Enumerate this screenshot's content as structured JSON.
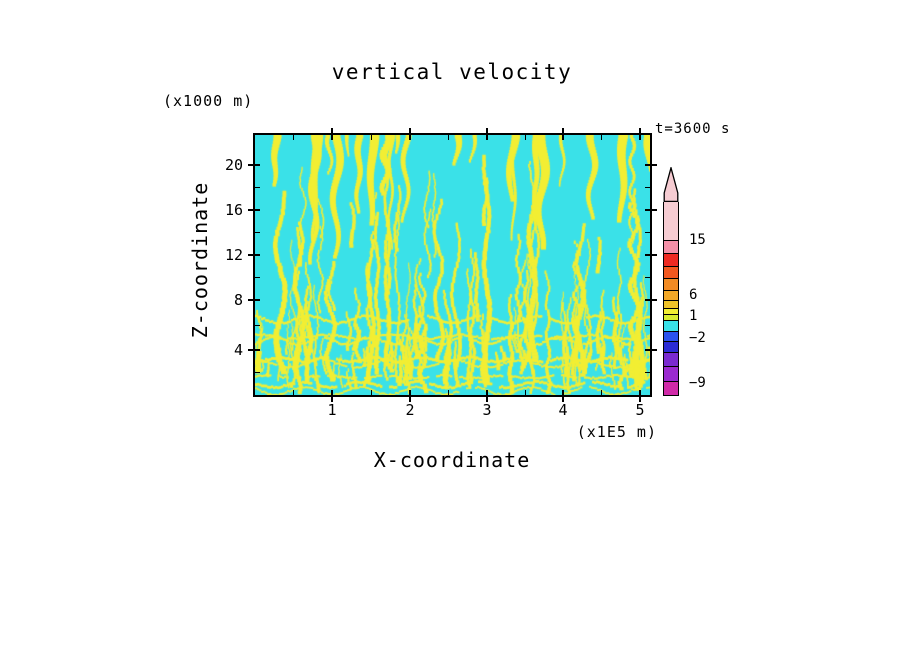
{
  "title": "vertical velocity",
  "time_label": "t=3600 s",
  "axes": {
    "x": {
      "title": "X-coordinate",
      "unit": "(x1E5 m)",
      "tick_labels": [
        "1",
        "2",
        "3",
        "4",
        "5"
      ]
    },
    "y": {
      "title": "Z-coordinate",
      "unit": "(x1000 m)",
      "tick_labels": [
        "20",
        "16",
        "12",
        "8",
        "4"
      ]
    }
  },
  "field": {
    "background_color": "#3ae1e8",
    "streak_color": "#f2ee33"
  },
  "colorbar": {
    "arrow_color": "#f6ccd2",
    "labels": [
      {
        "text": "15",
        "y": 73
      },
      {
        "text": "6",
        "y": 128
      },
      {
        "text": "1",
        "y": 149
      },
      {
        "text": "−2",
        "y": 171
      },
      {
        "text": "−9",
        "y": 216
      }
    ],
    "segments": [
      {
        "color": "#f6ccd2",
        "h": 38
      },
      {
        "color": "#f490a8",
        "h": 13
      },
      {
        "color": "#ee2a22",
        "h": 13
      },
      {
        "color": "#f2581f",
        "h": 12
      },
      {
        "color": "#f28b24",
        "h": 12
      },
      {
        "color": "#f2a828",
        "h": 10
      },
      {
        "color": "#f0c42a",
        "h": 8
      },
      {
        "color": "#f2ee33",
        "h": 6
      },
      {
        "color": "#d8ec30",
        "h": 6
      },
      {
        "color": "#3ae1e8",
        "h": 11
      },
      {
        "color": "#2a52ee",
        "h": 10
      },
      {
        "color": "#2b2bd5",
        "h": 11
      },
      {
        "color": "#7a2ad0",
        "h": 14
      },
      {
        "color": "#9b2ad0",
        "h": 15
      },
      {
        "color": "#d02aa8",
        "h": 14
      }
    ]
  },
  "chart_data": {
    "type": "heatmap",
    "title": "vertical velocity",
    "xlabel": "X-coordinate",
    "ylabel": "Z-coordinate",
    "x_unit": "(x1E5 m)",
    "y_unit": "(x1000 m)",
    "x_range": [
      0,
      5.1
    ],
    "y_range": [
      0,
      22.6
    ],
    "x_ticks": [
      1,
      2,
      3,
      4,
      5
    ],
    "y_ticks": [
      4,
      8,
      12,
      16,
      20
    ],
    "time_annotation": "t=3600 s",
    "colorbar_tick_values": [
      15,
      6,
      1,
      -2,
      -9
    ],
    "colorbar_orientation": "vertical, right side, arrow pointing up at top",
    "visible_field_levels": {
      "cyan": "values roughly in the -2 to 1 band (near-zero / weakly negative vertical velocity)",
      "yellow": "values roughly in the 1 to 6 band (weak updrafts)"
    },
    "pattern": "bright cyan background filled with narrow wavy yellow vertical updraft streaks; streaks are dense with thin wavy horizontal layering below z ≈ 6 (x1000 m), sparser and taller in the interior, and several wider yellow patches descend from the top boundary",
    "grid": false
  }
}
